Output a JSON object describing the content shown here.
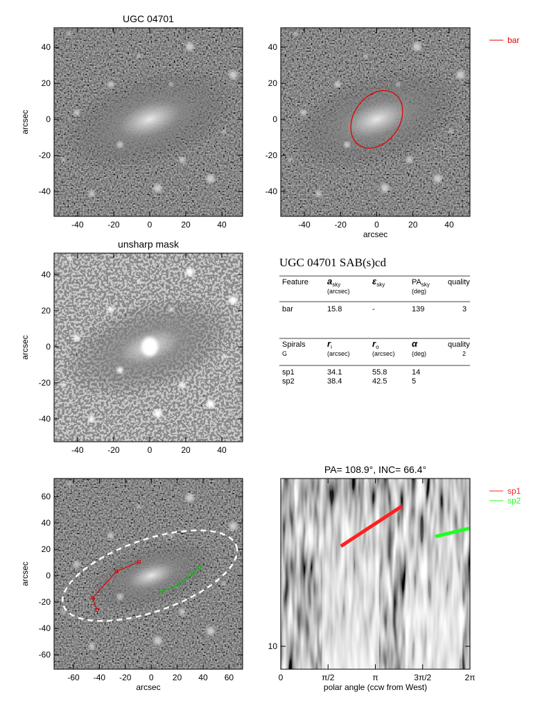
{
  "chart_data": [
    {
      "type": "image",
      "title": "UGC 04701",
      "y_label": "arcsec",
      "xlim": [
        -53,
        51.5
      ],
      "ylim": [
        -53.8,
        50.8
      ],
      "xticks": [
        -40,
        -20,
        0,
        20,
        40
      ],
      "yticks": [
        -40,
        -20,
        0,
        20,
        40
      ]
    },
    {
      "type": "image",
      "x_label": "arcsec",
      "xlim": [
        -53,
        51.5
      ],
      "ylim": [
        -53.8,
        50.8
      ],
      "xticks": [
        -40,
        -20,
        0,
        20,
        40
      ],
      "yticks": [
        -40,
        -20,
        0,
        20,
        40
      ],
      "series": [
        {
          "name": "bar",
          "color": "#e00000"
        }
      ]
    },
    {
      "type": "image",
      "title": "unsharp mask",
      "y_label": "arcsec",
      "xlim": [
        -53,
        51.5
      ],
      "ylim": [
        -52.7,
        51.9
      ],
      "xticks": [
        -40,
        -20,
        0,
        20,
        40
      ],
      "yticks": [
        -40,
        -20,
        0,
        20,
        40
      ]
    },
    {
      "type": "image",
      "x_label": "arcsec",
      "y_label": "arcsec",
      "xlim": [
        -75,
        70.5
      ],
      "ylim": [
        -71,
        73.7
      ],
      "xticks": [
        -60,
        -40,
        -20,
        0,
        20,
        40,
        60
      ],
      "yticks": [
        -60,
        -40,
        -20,
        0,
        20,
        40,
        60
      ],
      "series": [
        {
          "color": "#e00000",
          "x": [
            -9.5,
            -26.8,
            -45.3,
            -42
          ],
          "y": [
            10.5,
            3.2,
            -16.8,
            -26
          ]
        },
        {
          "color": "#00c000",
          "x": [
            7.4,
            21,
            31.6,
            36.8
          ],
          "y": [
            -12.6,
            -6.8,
            1,
            6.3
          ]
        }
      ]
    },
    {
      "type": "image",
      "title": "PA= 108.9°, INC=  66.4°",
      "x_label": "polar angle (ccw from West)",
      "xlim": [
        0,
        6.2832
      ],
      "ylim": [
        7.55,
        78.2
      ],
      "yscale": "log",
      "xticks": [
        0,
        {
          "value": 1.5708,
          "label": "π/2"
        },
        {
          "value": 3.1416,
          "label": "π"
        },
        {
          "value": 4.7124,
          "label": "3π/2"
        },
        {
          "value": 6.2832,
          "label": "2π"
        }
      ],
      "yticks": [
        10
      ],
      "series": [
        {
          "name": "sp1",
          "color": "#ff2020",
          "x": [
            2.0,
            4.03
          ],
          "y": [
            34.1,
            55.8
          ]
        },
        {
          "name": "sp2",
          "color": "#20ff20",
          "x": [
            5.13,
            6.28
          ],
          "y": [
            38.4,
            42.5
          ]
        }
      ]
    }
  ],
  "table": {
    "title": "UGC 04701  SAB(s)cd",
    "bar_header": [
      {
        "symbol": "Feature"
      },
      {
        "symbol": "a",
        "sub": "sky",
        "unit": "(arcsec)"
      },
      {
        "symbol": "ε",
        "sub": "sky"
      },
      {
        "symbol": "PA",
        "sub": "sky",
        "unit": "(deg)"
      },
      {
        "symbol": "quality"
      }
    ],
    "bar_rows": [
      [
        "bar",
        15.8,
        "-",
        139,
        3
      ]
    ],
    "spiral_header": [
      {
        "symbol": "Spirals",
        "unit": "G"
      },
      {
        "symbol": "r",
        "sub": "i",
        "unit": "(arcsec)"
      },
      {
        "symbol": "r",
        "sub": "o",
        "unit": "(arcsec)"
      },
      {
        "symbol": "α",
        "unit": "(deg)"
      },
      {
        "symbol": "quality",
        "unit": 2
      }
    ],
    "spiral_rows": [
      [
        "sp1",
        34.1,
        55.8,
        14
      ],
      [
        "sp2",
        38.4,
        42.5,
        5
      ]
    ]
  }
}
